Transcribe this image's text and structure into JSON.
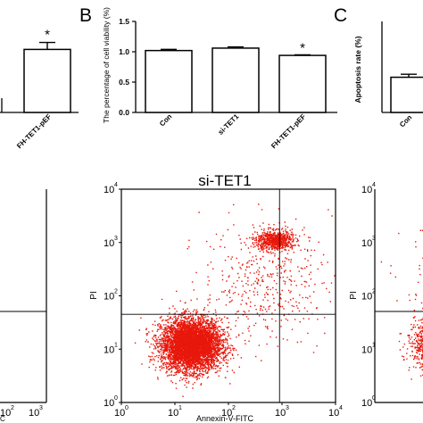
{
  "panels": {
    "b": "B",
    "c": "C"
  },
  "chart_data": [
    {
      "type": "bar",
      "panel": "A",
      "categories": [
        "FH-TET1-pEF"
      ],
      "values": [
        1.8
      ],
      "errors": [
        0.2
      ],
      "significance": [
        "*"
      ],
      "ylim": [
        0,
        2.6
      ]
    },
    {
      "type": "bar",
      "panel": "B",
      "title": "",
      "ylabel": "The percentage of cell viability (%)",
      "categories": [
        "Con",
        "si-TET1",
        "FH-TET1-pEF"
      ],
      "values": [
        1.02,
        1.06,
        0.94
      ],
      "errors": [
        0.02,
        0.02,
        0.01
      ],
      "significance": [
        "",
        "",
        "*"
      ],
      "ylim": [
        0,
        1.5
      ],
      "yticks": [
        "0.0",
        "0.5",
        "1.0",
        "1.5"
      ],
      "colors": {
        "bar_fill": "#ffffff",
        "bar_stroke": "#000000"
      }
    },
    {
      "type": "bar",
      "panel": "C",
      "ylabel": "Apoptosis rate (%)",
      "categories": [
        "Con"
      ],
      "values": [
        5.8
      ],
      "errors": [
        0.5
      ],
      "ylim": [
        0,
        15
      ]
    },
    {
      "type": "scatter",
      "panel": "flow-center",
      "title": "si-TET1",
      "xlabel": "Annexin-V-FITC",
      "ylabel": "PI",
      "log_scale": true,
      "xlim": [
        1,
        10000
      ],
      "ylim": [
        1,
        10000
      ],
      "ticks": [
        {
          "base": "10",
          "exp": "0"
        },
        {
          "base": "10",
          "exp": "1"
        },
        {
          "base": "10",
          "exp": "2"
        },
        {
          "base": "10",
          "exp": "3"
        },
        {
          "base": "10",
          "exp": "4"
        }
      ],
      "gates": {
        "x": 900,
        "y": 45
      },
      "clusters": [
        {
          "cx": 20,
          "cy": 12,
          "sx": 0.28,
          "sy": 0.24,
          "n": 5200
        },
        {
          "cx": 700,
          "cy": 1100,
          "sx": 0.17,
          "sy": 0.09,
          "n": 700
        },
        {
          "cx": 500,
          "cy": 200,
          "sx": 0.6,
          "sy": 0.55,
          "n": 450
        }
      ],
      "color": "#e8170b"
    },
    {
      "type": "scatter",
      "panel": "flow-left-partial",
      "ticks": [
        {
          "base": "10",
          "exp": "2"
        },
        {
          "base": "10",
          "exp": "3"
        }
      ],
      "xlabel_fragment": "C",
      "gates": {
        "y": 45
      },
      "color": "#e8170b"
    },
    {
      "type": "scatter",
      "panel": "flow-right-partial",
      "ylabel": "PI",
      "ticks": [
        {
          "base": "10",
          "exp": "0"
        },
        {
          "base": "10",
          "exp": "1"
        },
        {
          "base": "10",
          "exp": "2"
        },
        {
          "base": "10",
          "exp": "3"
        },
        {
          "base": "10",
          "exp": "4"
        }
      ],
      "color": "#e8170b"
    }
  ]
}
